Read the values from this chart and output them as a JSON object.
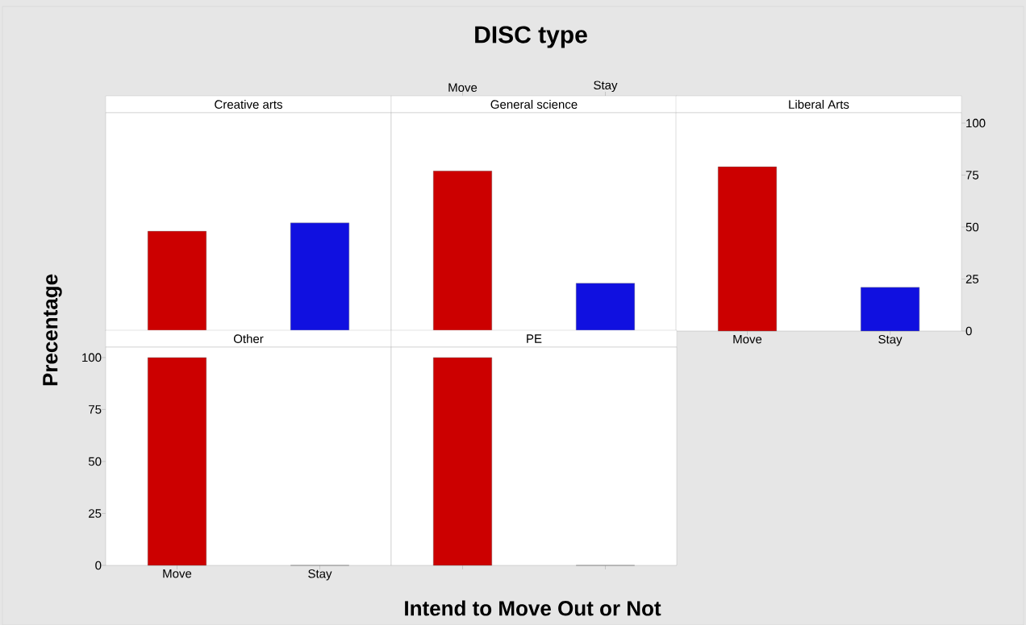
{
  "chart_data": [
    {
      "type": "bar",
      "title": "Creative arts",
      "categories": [
        null,
        null
      ],
      "values": [
        48,
        52
      ],
      "colors": [
        "#cc0000",
        "#1010e0"
      ],
      "ylim": [
        0,
        105
      ],
      "tick_labels": false,
      "annotations": [
        "DISC type"
      ],
      "xlabel": "Intend to Move Out or Not",
      "ylabel": "Precentage"
    },
    {
      "type": "bar",
      "title": "General science",
      "categories": [
        "Move",
        "Stay"
      ],
      "values": [
        77,
        23
      ],
      "colors": [
        "#cc0000",
        "#1010e0"
      ],
      "ylim": [
        0,
        105
      ],
      "tick_labels": "x"
    },
    {
      "type": "bar",
      "title": "Liberal Arts",
      "categories": [
        "Move",
        "Stay"
      ],
      "values": [
        79,
        21
      ],
      "colors": [
        "#cc0000",
        "#1010e0"
      ],
      "ylim": [
        0,
        105
      ],
      "yticks": [
        0,
        25,
        50,
        75,
        100
      ]
    },
    {
      "type": "bar",
      "title": "Other",
      "categories": [
        "Move",
        "Stay"
      ],
      "values": [
        100,
        0
      ],
      "colors": [
        "#cc0000",
        "#1010e0"
      ],
      "ylim": [
        0,
        105
      ],
      "yticks": [
        0,
        25,
        50,
        75,
        100
      ]
    },
    {
      "type": "bar",
      "title": "PE",
      "categories": [
        null,
        null
      ],
      "values": [
        100,
        0
      ],
      "colors": [
        "#cc0000",
        "#1010e0"
      ],
      "ylim": [
        0,
        105
      ],
      "tick_labels": false
    }
  ]
}
